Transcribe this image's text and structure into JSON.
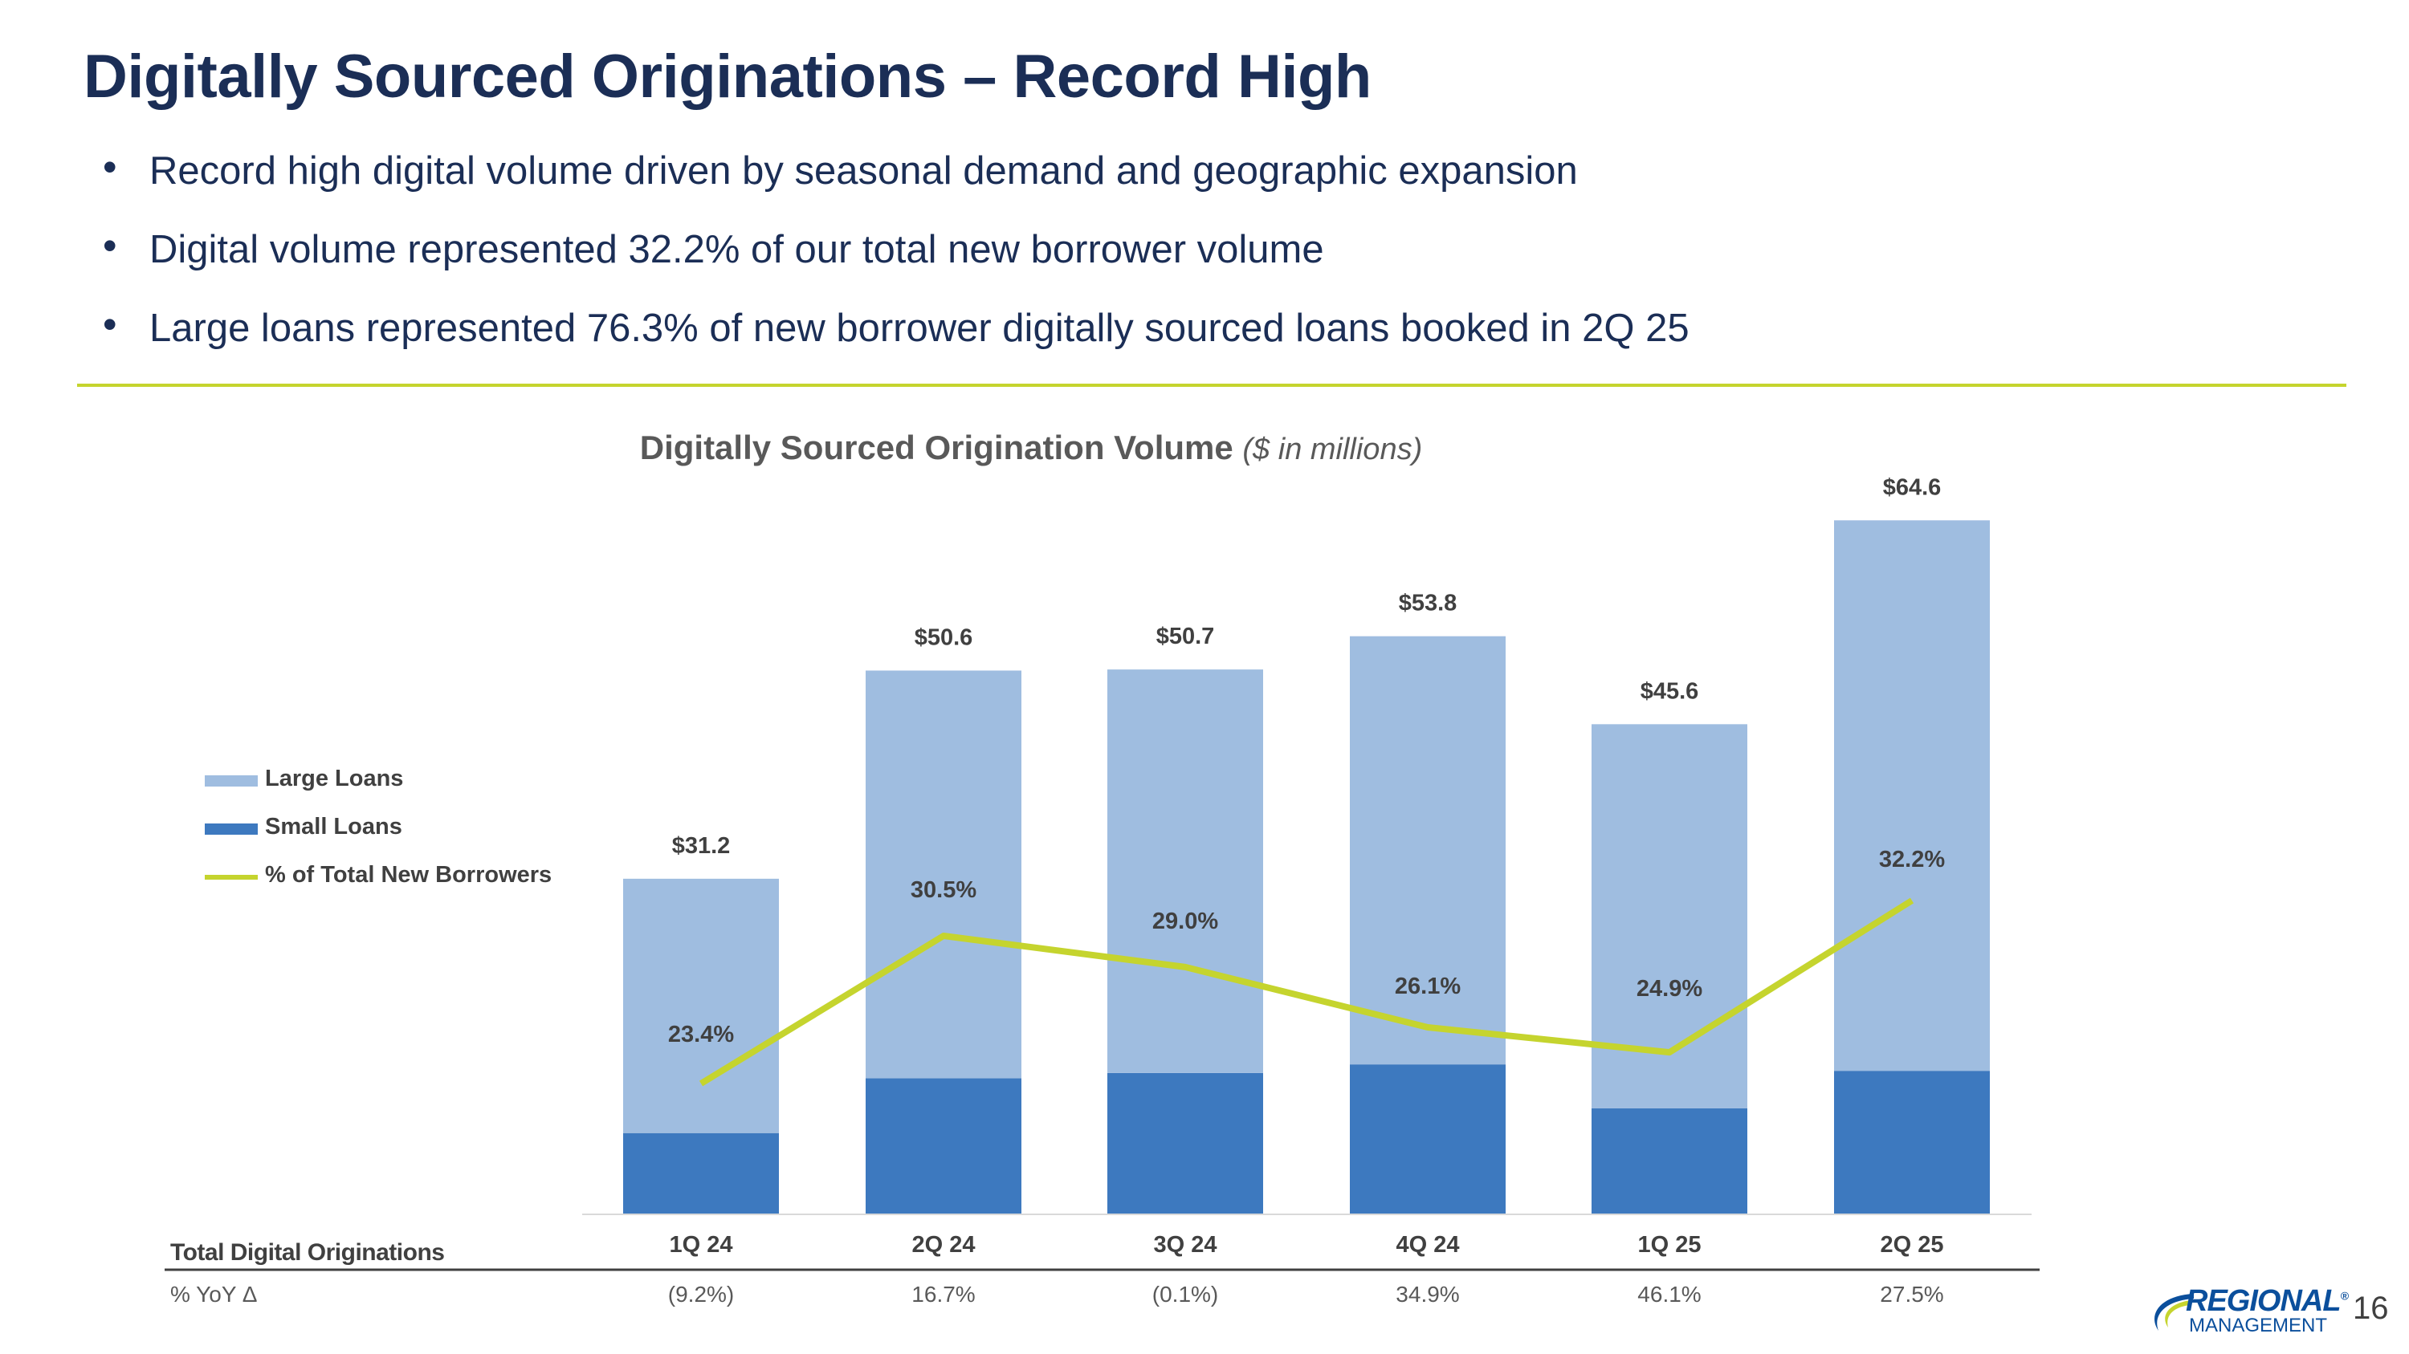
{
  "title": "Digitally Sourced Originations – Record High",
  "bullets": [
    "Record high digital volume driven by seasonal demand and geographic expansion",
    "Digital volume represented 32.2% of our total new borrower volume",
    "Large loans represented 76.3% of new borrower digitally sourced loans booked in 2Q 25"
  ],
  "bullet_glyph": "•",
  "colors": {
    "title": "#1b2e56",
    "divider": "#c5d42e",
    "large_loans": "#9fbde0",
    "small_loans": "#3d79bf",
    "line": "#c5d42e",
    "label": "#404040",
    "logo_blue": "#0b4f9c"
  },
  "chart_data": {
    "type": "bar",
    "stacked": true,
    "title": "Digitally Sourced Origination Volume",
    "subtitle": "($ in millions)",
    "categories": [
      "1Q 24",
      "2Q 24",
      "3Q 24",
      "4Q 24",
      "1Q 25",
      "2Q 25"
    ],
    "ylim": [
      0,
      70
    ],
    "series": [
      {
        "name": "Small Loans",
        "type": "bar",
        "values": [
          7.5,
          12.6,
          13.1,
          13.9,
          9.8,
          13.3
        ]
      },
      {
        "name": "Large Loans",
        "type": "bar",
        "values": [
          23.7,
          38.0,
          37.6,
          39.9,
          35.8,
          51.3
        ]
      },
      {
        "name": "% of Total New Borrowers",
        "type": "line",
        "axis": "secondary",
        "ylim": [
          0,
          80
        ],
        "values": [
          23.4,
          30.5,
          29.0,
          26.1,
          24.9,
          32.2
        ],
        "labels": [
          "23.4%",
          "30.5%",
          "29.0%",
          "26.1%",
          "24.9%",
          "32.2%"
        ]
      }
    ],
    "totals": [
      31.2,
      50.6,
      50.7,
      53.8,
      45.6,
      64.6
    ],
    "total_labels": [
      "$31.2",
      "$50.6",
      "$50.7",
      "$53.8",
      "$45.6",
      "$64.6"
    ],
    "legend": [
      "Large Loans",
      "Small Loans",
      "% of Total New Borrowers"
    ],
    "legend_position": "left",
    "table": {
      "row1_label": "Total Digital Originations",
      "row2_label": "% YoY Δ",
      "yoy": [
        "(9.2%)",
        "16.7%",
        "(0.1%)",
        "34.9%",
        "46.1%",
        "27.5%"
      ]
    }
  },
  "page_number": "16",
  "logo": {
    "line1": "REGIONAL",
    "line2": "MANAGEMENT",
    "mark": "®"
  }
}
